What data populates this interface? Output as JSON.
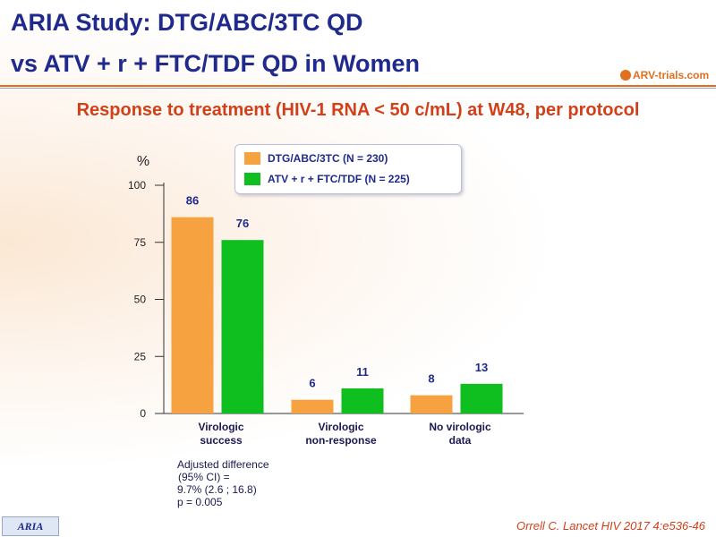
{
  "title": {
    "line1": "ARIA Study: DTG/ABC/3TC QD",
    "line2": "vs ATV + r + FTC/TDF QD in Women"
  },
  "logo": {
    "text": "ARV-trials.com"
  },
  "subtitle": "Response to treatment (HIV-1 RNA < 50 c/mL) at W48, per protocol",
  "chart_data": {
    "type": "bar",
    "ylabel": "%",
    "ylim": [
      0,
      100
    ],
    "yticks": [
      0,
      25,
      50,
      75,
      100
    ],
    "categories": [
      [
        "Virologic",
        "success"
      ],
      [
        "Virologic",
        "non-response"
      ],
      [
        "No virologic",
        "data"
      ]
    ],
    "series": [
      {
        "name": "DTG/ABC/3TC (N = 230)",
        "color": "#f7a240",
        "values": [
          86,
          6,
          8
        ]
      },
      {
        "name": "ATV + r + FTC/TDF (N = 225)",
        "color": "#0fbf1f",
        "values": [
          76,
          11,
          13
        ]
      }
    ],
    "legend_position": "top",
    "grid": false
  },
  "note": [
    "Adjusted difference",
    "(95% CI) =",
    "9.7% (2.6 ; 16.8)",
    "p = 0.005"
  ],
  "footer": {
    "tag": "ARIA",
    "citation": "Orrell C. Lancet HIV 2017 4:e536-46"
  },
  "colors": {
    "title": "#1f2a8c",
    "accent": "#d2401a",
    "rule": "#e07020"
  }
}
